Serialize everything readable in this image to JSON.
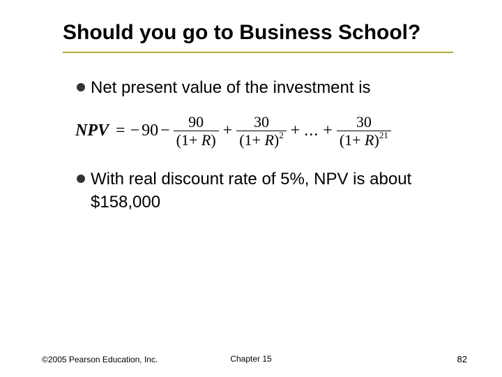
{
  "title": "Should you go to Business School?",
  "bullets": {
    "b1": "Net present value of the investment is",
    "b2": "With real discount rate of 5%, NPV is about $158,000"
  },
  "formula": {
    "lhs": "NPV",
    "first_term": "90",
    "fracs": [
      {
        "num": "90",
        "den_base": "(1+ R)",
        "exp": ""
      },
      {
        "num": "30",
        "den_base": "(1+ R)",
        "exp": "2"
      },
      {
        "num": "30",
        "den_base": "(1+ R)",
        "exp": "21"
      }
    ],
    "ellipsis": "..."
  },
  "footer": {
    "copyright": "©2005 Pearson Education, Inc.",
    "chapter": "Chapter 15",
    "page": "82"
  },
  "colors": {
    "underline": "#b8a838",
    "text": "#000000",
    "background": "#ffffff",
    "bullet": "#333333"
  }
}
